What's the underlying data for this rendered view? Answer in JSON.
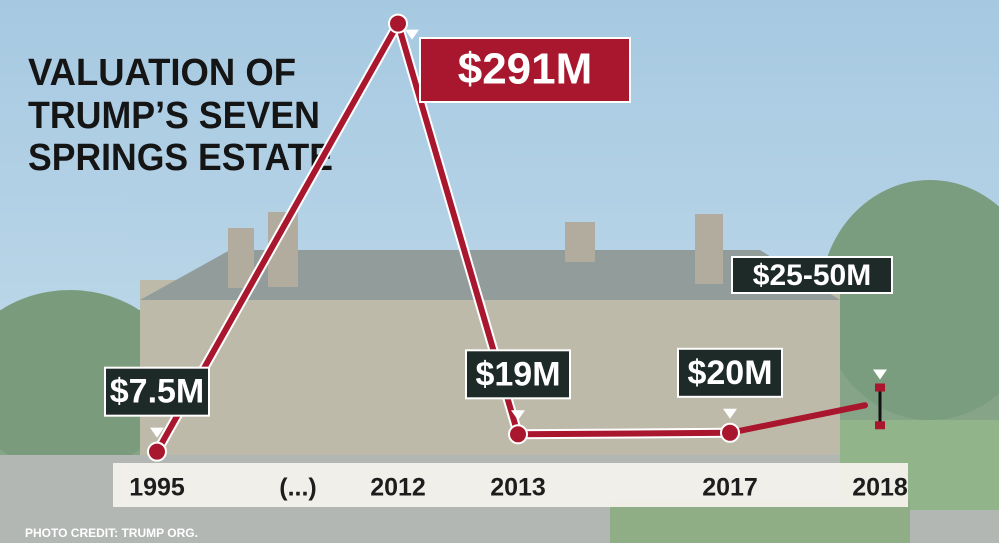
{
  "chart_data": {
    "type": "line",
    "title": [
      "VALUATION OF",
      "TRUMP’S SEVEN",
      "SPRINGS ESTATE"
    ],
    "categories": [
      "1995",
      "2012",
      "2013",
      "2017",
      "2018"
    ],
    "axis_break_label": "(...)",
    "values": [
      7.5,
      291,
      19,
      20,
      null
    ],
    "value_labels": [
      "$7.5M",
      "$291M",
      "$19M",
      "$20M",
      null
    ],
    "range": {
      "category": "2018",
      "low": 25,
      "high": 50,
      "label": "$25-50M"
    },
    "color": "#a8172d",
    "ylim": [
      0,
      300
    ],
    "credit": "PHOTO CREDIT: TRUMP ORG."
  }
}
